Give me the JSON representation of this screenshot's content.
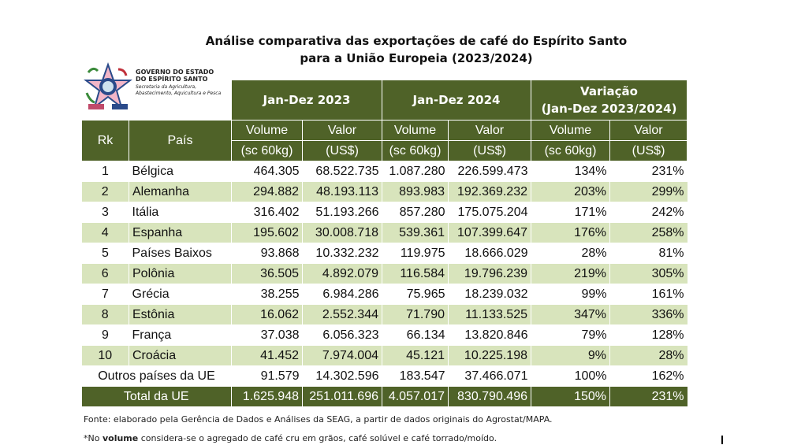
{
  "title": {
    "line1": "Análise comparativa das exportações de café do Espírito Santo",
    "line2": "para a União Europeia (2023/2024)"
  },
  "logo": {
    "line1": "GOVERNO DO ESTADO",
    "line2": "DO ESPÍRITO SANTO",
    "line3": "Secretaria da Agricultura,",
    "line4": "Abastecimento, Aquicultura e Pesca"
  },
  "colors": {
    "header": "#4f6228",
    "alt_row": "#d8e4bc"
  },
  "header": {
    "period1": "Jan-Dez 2023",
    "period2": "Jan-Dez 2024",
    "variation1": "Variação",
    "variation2": "(Jan-Dez 2023/2024)",
    "rk": "Rk",
    "country": "País",
    "volume": "Volume",
    "value": "Valor",
    "volume_unit": "(sc 60kg)",
    "value_unit": "(US$)"
  },
  "rows": [
    {
      "rk": "1",
      "country": "Bélgica",
      "vol23": "464.305",
      "val23": "68.522.735",
      "vol24": "1.087.280",
      "val24": "226.599.473",
      "var_vol": "134%",
      "var_val": "231%"
    },
    {
      "rk": "2",
      "country": "Alemanha",
      "vol23": "294.882",
      "val23": "48.193.113",
      "vol24": "893.983",
      "val24": "192.369.232",
      "var_vol": "203%",
      "var_val": "299%"
    },
    {
      "rk": "3",
      "country": "Itália",
      "vol23": "316.402",
      "val23": "51.193.266",
      "vol24": "857.280",
      "val24": "175.075.204",
      "var_vol": "171%",
      "var_val": "242%"
    },
    {
      "rk": "4",
      "country": "Espanha",
      "vol23": "195.602",
      "val23": "30.008.718",
      "vol24": "539.361",
      "val24": "107.399.647",
      "var_vol": "176%",
      "var_val": "258%"
    },
    {
      "rk": "5",
      "country": "Países Baixos",
      "vol23": "93.868",
      "val23": "10.332.232",
      "vol24": "119.975",
      "val24": "18.666.029",
      "var_vol": "28%",
      "var_val": "81%"
    },
    {
      "rk": "6",
      "country": "Polônia",
      "vol23": "36.505",
      "val23": "4.892.079",
      "vol24": "116.584",
      "val24": "19.796.239",
      "var_vol": "219%",
      "var_val": "305%"
    },
    {
      "rk": "7",
      "country": "Grécia",
      "vol23": "38.255",
      "val23": "6.984.286",
      "vol24": "75.965",
      "val24": "18.239.032",
      "var_vol": "99%",
      "var_val": "161%"
    },
    {
      "rk": "8",
      "country": "Estônia",
      "vol23": "16.062",
      "val23": "2.552.344",
      "vol24": "71.790",
      "val24": "11.133.525",
      "var_vol": "347%",
      "var_val": "336%"
    },
    {
      "rk": "9",
      "country": "França",
      "vol23": "37.038",
      "val23": "6.056.323",
      "vol24": "66.134",
      "val24": "13.820.846",
      "var_vol": "79%",
      "var_val": "128%"
    },
    {
      "rk": "10",
      "country": "Croácia",
      "vol23": "41.452",
      "val23": "7.974.004",
      "vol24": "45.121",
      "val24": "10.225.198",
      "var_vol": "9%",
      "var_val": "28%"
    }
  ],
  "others": {
    "label": "Outros países da UE",
    "vol23": "91.579",
    "val23": "14.302.596",
    "vol24": "183.547",
    "val24": "37.466.071",
    "var_vol": "100%",
    "var_val": "162%"
  },
  "total": {
    "label": "Total da UE",
    "vol23": "1.625.948",
    "val23": "251.011.696",
    "vol24": "4.057.017",
    "val24": "830.790.496",
    "var_vol": "150%",
    "var_val": "231%"
  },
  "footer": {
    "source": "Fonte: elaborado pela Gerência de Dados e Análises da SEAG, a partir de dados originais do Agrostat/MAPA.",
    "note_prefix": "*No ",
    "note_bold": "volume",
    "note_rest": " considera-se o agregado de café cru em grãos, café solúvel e café torrado/moído."
  }
}
